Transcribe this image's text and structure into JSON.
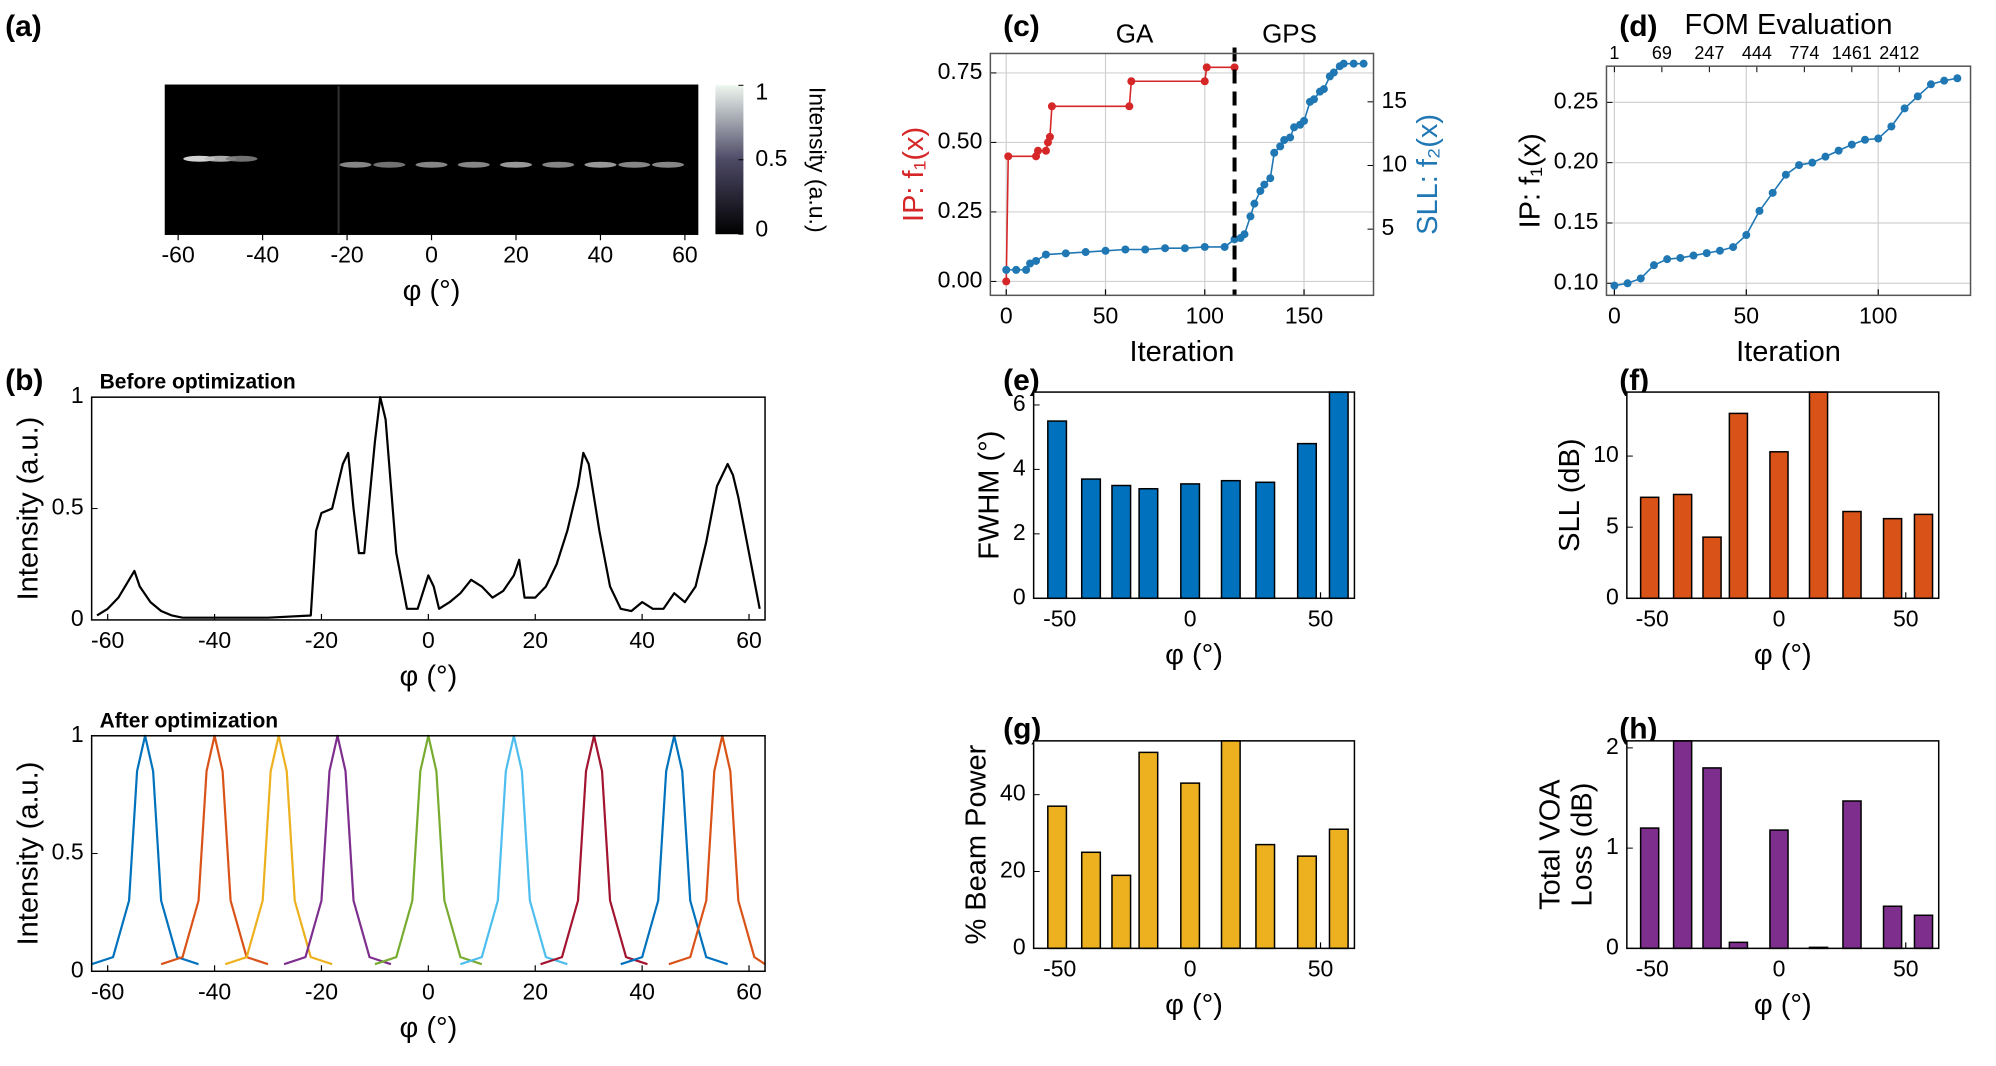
{
  "chart_data": [
    {
      "type": "heatmap",
      "panel": "(a)",
      "xlabel": "φ (°)",
      "colorbar_label": "Intensity (a.u.)",
      "xlim": [
        -63,
        63
      ],
      "xticks": [
        -60,
        -40,
        -20,
        0,
        20,
        40,
        60
      ],
      "clim": [
        0,
        1
      ],
      "cticks": [
        0,
        0.5,
        1
      ],
      "x": [
        -55,
        -50,
        -45,
        -18,
        -10,
        0,
        10,
        20,
        30,
        40,
        48,
        56
      ],
      "values": [
        0.9,
        0.7,
        0.4,
        0.5,
        0.4,
        0.5,
        0.5,
        0.6,
        0.5,
        0.6,
        0.5,
        0.5
      ]
    },
    {
      "type": "line",
      "panel": "(b)",
      "title": "Before optimization",
      "ylabel": "Intensity (a.u.)",
      "xlabel": "φ (°)",
      "xlim": [
        -63,
        63
      ],
      "xticks": [
        -60,
        -40,
        -20,
        0,
        20,
        40,
        60
      ],
      "ylim": [
        0,
        1
      ],
      "yticks": [
        0,
        0.5,
        1
      ],
      "grid": false,
      "series": [
        {
          "color": "#000000",
          "x": [
            -62,
            -60,
            -58,
            -56,
            -55,
            -54,
            -52,
            -50,
            -48,
            -46,
            -40,
            -30,
            -22,
            -21,
            -20,
            -18,
            -16,
            -15,
            -14,
            -13,
            -12,
            -10,
            -9,
            -8,
            -7,
            -6,
            -4,
            -2,
            0,
            1,
            2,
            4,
            6,
            8,
            10,
            12,
            14,
            16,
            17,
            18,
            20,
            22,
            24,
            26,
            28,
            29,
            30,
            32,
            34,
            36,
            38,
            40,
            42,
            44,
            46,
            48,
            50,
            52,
            54,
            56,
            57,
            58,
            60,
            62
          ],
          "values": [
            0.02,
            0.05,
            0.1,
            0.18,
            0.22,
            0.15,
            0.08,
            0.04,
            0.02,
            0.01,
            0.01,
            0.01,
            0.02,
            0.4,
            0.48,
            0.5,
            0.7,
            0.75,
            0.5,
            0.3,
            0.3,
            0.8,
            1,
            0.9,
            0.6,
            0.3,
            0.05,
            0.05,
            0.2,
            0.15,
            0.05,
            0.08,
            0.12,
            0.18,
            0.15,
            0.1,
            0.13,
            0.2,
            0.27,
            0.1,
            0.1,
            0.15,
            0.25,
            0.4,
            0.6,
            0.75,
            0.7,
            0.4,
            0.15,
            0.05,
            0.04,
            0.08,
            0.05,
            0.05,
            0.12,
            0.08,
            0.15,
            0.35,
            0.6,
            0.7,
            0.65,
            0.55,
            0.3,
            0.05
          ]
        }
      ]
    },
    {
      "type": "line",
      "title": "After optimization",
      "ylabel": "Intensity (a.u.)",
      "xlabel": "φ (°)",
      "xlim": [
        -63,
        63
      ],
      "xticks": [
        -60,
        -40,
        -20,
        0,
        20,
        40,
        60
      ],
      "ylim": [
        0,
        1
      ],
      "yticks": [
        0,
        0.5,
        1
      ],
      "grid": false,
      "series": [
        {
          "color": "#0072BD",
          "x": [
            -63,
            -59,
            -56,
            -54.5,
            -53,
            -51.5,
            -50,
            -47,
            -43
          ],
          "values": [
            0.03,
            0.06,
            0.3,
            0.85,
            1,
            0.85,
            0.3,
            0.06,
            0.03
          ]
        },
        {
          "color": "#D95319",
          "x": [
            -50,
            -46,
            -43,
            -41.5,
            -40,
            -38.5,
            -37,
            -34,
            -30
          ],
          "values": [
            0.03,
            0.06,
            0.3,
            0.85,
            1,
            0.85,
            0.3,
            0.06,
            0.03
          ]
        },
        {
          "color": "#EDB120",
          "x": [
            -38,
            -34,
            -31,
            -29.5,
            -28,
            -26.5,
            -25,
            -22,
            -18
          ],
          "values": [
            0.03,
            0.06,
            0.3,
            0.85,
            1,
            0.85,
            0.3,
            0.06,
            0.03
          ]
        },
        {
          "color": "#7E2F8E",
          "x": [
            -27,
            -23,
            -20,
            -18.5,
            -17,
            -15.5,
            -14,
            -11,
            -7
          ],
          "values": [
            0.03,
            0.06,
            0.3,
            0.85,
            1,
            0.85,
            0.3,
            0.06,
            0.03
          ]
        },
        {
          "color": "#77AC30",
          "x": [
            -10,
            -6,
            -3,
            -1.5,
            0,
            1.5,
            3,
            6,
            10
          ],
          "values": [
            0.03,
            0.06,
            0.3,
            0.85,
            1,
            0.85,
            0.3,
            0.06,
            0.03
          ]
        },
        {
          "color": "#4DBEEE",
          "x": [
            6,
            10,
            13,
            14.5,
            16,
            17.5,
            19,
            22,
            26
          ],
          "values": [
            0.03,
            0.06,
            0.3,
            0.85,
            1,
            0.85,
            0.3,
            0.06,
            0.03
          ]
        },
        {
          "color": "#A2142F",
          "x": [
            21,
            25,
            28,
            29.5,
            31,
            32.5,
            34,
            37,
            41
          ],
          "values": [
            0.03,
            0.06,
            0.3,
            0.85,
            1,
            0.85,
            0.3,
            0.06,
            0.03
          ]
        },
        {
          "color": "#0072BD",
          "x": [
            36,
            40,
            43,
            44.5,
            46,
            47.5,
            49,
            52,
            56
          ],
          "values": [
            0.03,
            0.06,
            0.3,
            0.85,
            1,
            0.85,
            0.3,
            0.06,
            0.03
          ]
        },
        {
          "color": "#D95319",
          "x": [
            45,
            49,
            52,
            53.5,
            55,
            56.5,
            58,
            61,
            63
          ],
          "values": [
            0.03,
            0.06,
            0.3,
            0.85,
            1,
            0.85,
            0.3,
            0.06,
            0.03
          ]
        }
      ]
    },
    {
      "type": "line",
      "panel": "(c)",
      "xlabel": "Iteration",
      "ylabel": "IP: f₁(x)",
      "y2label": "SLL: f₂(x)",
      "axis_label_colors": true,
      "markers": true,
      "grid": true,
      "xlim": [
        -8,
        185
      ],
      "xticks": [
        0,
        50,
        100,
        150
      ],
      "ylim": [
        -0.05,
        0.82
      ],
      "yticks": [
        {
          "value": 0,
          "label": "0.00"
        },
        {
          "value": 0.25,
          "label": "0.25"
        },
        {
          "value": 0.5,
          "label": "0.50"
        },
        {
          "value": 0.75,
          "label": "0.75"
        }
      ],
      "y2lim": [
        -0.2,
        18.8
      ],
      "y2ticks": [
        5,
        10,
        15
      ],
      "vline": 115,
      "annotations": [
        "GA",
        "GPS"
      ],
      "series": [
        {
          "color": "#d62728",
          "x": [
            0,
            1,
            15,
            16,
            20,
            21,
            22,
            23,
            62,
            63,
            100,
            101,
            115
          ],
          "values": [
            0,
            0.45,
            0.45,
            0.47,
            0.47,
            0.5,
            0.52,
            0.63,
            0.63,
            0.72,
            0.72,
            0.77,
            0.77
          ]
        },
        {
          "color": "#1f77b4",
          "axis": "y2",
          "x": [
            0,
            5,
            10,
            12,
            15,
            20,
            30,
            40,
            50,
            60,
            70,
            80,
            90,
            100,
            110,
            115,
            118,
            120,
            123,
            125,
            128,
            130,
            133,
            135,
            138,
            140,
            143,
            145,
            148,
            150,
            153,
            155,
            158,
            160,
            163,
            165,
            168,
            170,
            175,
            180
          ],
          "values": [
            1.8,
            1.8,
            1.8,
            2.3,
            2.5,
            3,
            3.1,
            3.2,
            3.3,
            3.4,
            3.4,
            3.5,
            3.5,
            3.6,
            3.6,
            4.2,
            4.3,
            4.6,
            6,
            7,
            8,
            8.5,
            9,
            11,
            11.5,
            12,
            12.2,
            13,
            13.2,
            13.5,
            15,
            15.2,
            15.8,
            16,
            17,
            17.3,
            17.8,
            18,
            18,
            18
          ]
        }
      ]
    },
    {
      "type": "line",
      "panel": "(d)",
      "xlabel": "Iteration",
      "ylabel": "IP: f₁(x)",
      "x2label": "FOM Evaluation",
      "markers": true,
      "grid": true,
      "xlim": [
        -3,
        135
      ],
      "xticks": [
        0,
        50,
        100
      ],
      "x2ticks": [
        {
          "value": 0,
          "label": "1"
        },
        {
          "value": 18,
          "label": "69"
        },
        {
          "value": 36,
          "label": "247"
        },
        {
          "value": 54,
          "label": "444"
        },
        {
          "value": 72,
          "label": "774"
        },
        {
          "value": 90,
          "label": "1461"
        },
        {
          "value": 108,
          "label": "2412"
        }
      ],
      "ylim": [
        0.09,
        0.28
      ],
      "yticks": [
        {
          "value": 0.1,
          "label": "0.10"
        },
        {
          "value": 0.15,
          "label": "0.15"
        },
        {
          "value": 0.2,
          "label": "0.20"
        },
        {
          "value": 0.25,
          "label": "0.25"
        }
      ],
      "series": [
        {
          "color": "#1f77b4",
          "x": [
            0,
            5,
            10,
            15,
            20,
            25,
            30,
            35,
            40,
            45,
            50,
            55,
            60,
            65,
            70,
            75,
            80,
            85,
            90,
            95,
            100,
            105,
            110,
            115,
            120,
            125,
            130
          ],
          "values": [
            0.098,
            0.1,
            0.104,
            0.115,
            0.12,
            0.121,
            0.123,
            0.125,
            0.127,
            0.13,
            0.14,
            0.16,
            0.175,
            0.19,
            0.198,
            0.2,
            0.205,
            0.21,
            0.215,
            0.219,
            0.22,
            0.23,
            0.245,
            0.255,
            0.265,
            0.268,
            0.27
          ]
        }
      ]
    },
    {
      "type": "bar",
      "panel": "(e)",
      "ylabel": "FWHM (°)",
      "xlabel": "φ (°)",
      "color": "#0072BD",
      "xlim": [
        -60,
        63
      ],
      "xticks": [
        -50,
        0,
        50
      ],
      "ylim": [
        0,
        6.4
      ],
      "yticks": [
        0,
        2,
        4,
        6
      ],
      "x": [
        -51,
        -38,
        -26.4,
        -16,
        0,
        15.6,
        28.8,
        44.8,
        57
      ],
      "values": [
        5.5,
        3.7,
        3.5,
        3.4,
        3.55,
        3.65,
        3.6,
        4.8,
        6.4
      ]
    },
    {
      "type": "bar",
      "panel": "(f)",
      "ylabel": "SLL (dB)",
      "xlabel": "φ (°)",
      "color": "#D95319",
      "xlim": [
        -60,
        63
      ],
      "xticks": [
        -50,
        0,
        50
      ],
      "ylim": [
        0,
        14.5
      ],
      "yticks": [
        0,
        5,
        10
      ],
      "x": [
        -51,
        -38,
        -26.4,
        -16,
        0,
        15.6,
        28.8,
        44.8,
        57
      ],
      "values": [
        7.1,
        7.3,
        4.3,
        13,
        10.3,
        14.5,
        6.1,
        5.6,
        5.9
      ]
    },
    {
      "type": "bar",
      "panel": "(g)",
      "ylabel": "% Beam Power",
      "xlabel": "φ (°)",
      "color": "#EDB120",
      "xlim": [
        -60,
        63
      ],
      "xticks": [
        -50,
        0,
        50
      ],
      "ylim": [
        0,
        54
      ],
      "yticks": [
        0,
        20,
        40
      ],
      "x": [
        -51,
        -38,
        -26.4,
        -16,
        0,
        15.6,
        28.8,
        44.8,
        57
      ],
      "values": [
        37,
        25,
        19,
        51,
        43,
        54,
        27,
        24,
        31
      ]
    },
    {
      "type": "bar",
      "panel": "(h)",
      "ylabel": [
        "Total VOA",
        "Loss (dB)"
      ],
      "xlabel": "φ (°)",
      "color": "#7E2F8E",
      "xlim": [
        -60,
        63
      ],
      "xticks": [
        -50,
        0,
        50
      ],
      "ylim": [
        0,
        2.07
      ],
      "yticks": [
        0,
        1,
        2
      ],
      "x": [
        -51,
        -38,
        -26.4,
        -16,
        0,
        15.6,
        28.8,
        44.8,
        57
      ],
      "values": [
        1.2,
        2.07,
        1.8,
        0.06,
        1.18,
        0.01,
        1.47,
        0.42,
        0.33
      ]
    }
  ]
}
